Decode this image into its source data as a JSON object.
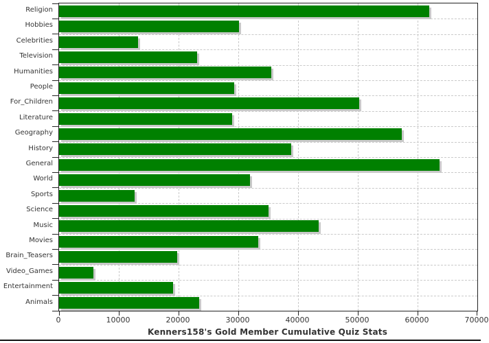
{
  "chart_data": {
    "type": "bar",
    "orientation": "horizontal",
    "title": "Kenners158's Gold Member Cumulative Quiz Stats",
    "categories": [
      "Religion",
      "Hobbies",
      "Celebrities",
      "Television",
      "Humanities",
      "People",
      "For_Children",
      "Literature",
      "Geography",
      "History",
      "General",
      "World",
      "Sports",
      "Science",
      "Music",
      "Movies",
      "Brain_Teasers",
      "Video_Games",
      "Entertainment",
      "Animals"
    ],
    "values": [
      62000,
      30100,
      13200,
      23100,
      35500,
      29300,
      50200,
      29000,
      57400,
      38800,
      63700,
      32000,
      12600,
      35000,
      43500,
      33300,
      19800,
      5800,
      19100,
      23500
    ],
    "xlabel": "",
    "ylabel": "",
    "xlim": [
      0,
      70000
    ],
    "x_ticks": [
      0,
      10000,
      20000,
      30000,
      40000,
      50000,
      60000,
      70000
    ],
    "grid": true,
    "legend_position": "none",
    "bar_color": "#008000",
    "shadow_color": "#c9c9c9",
    "gridline_color": "#c9c9c9",
    "axis_color": "#222222",
    "text_color": "#333333"
  }
}
